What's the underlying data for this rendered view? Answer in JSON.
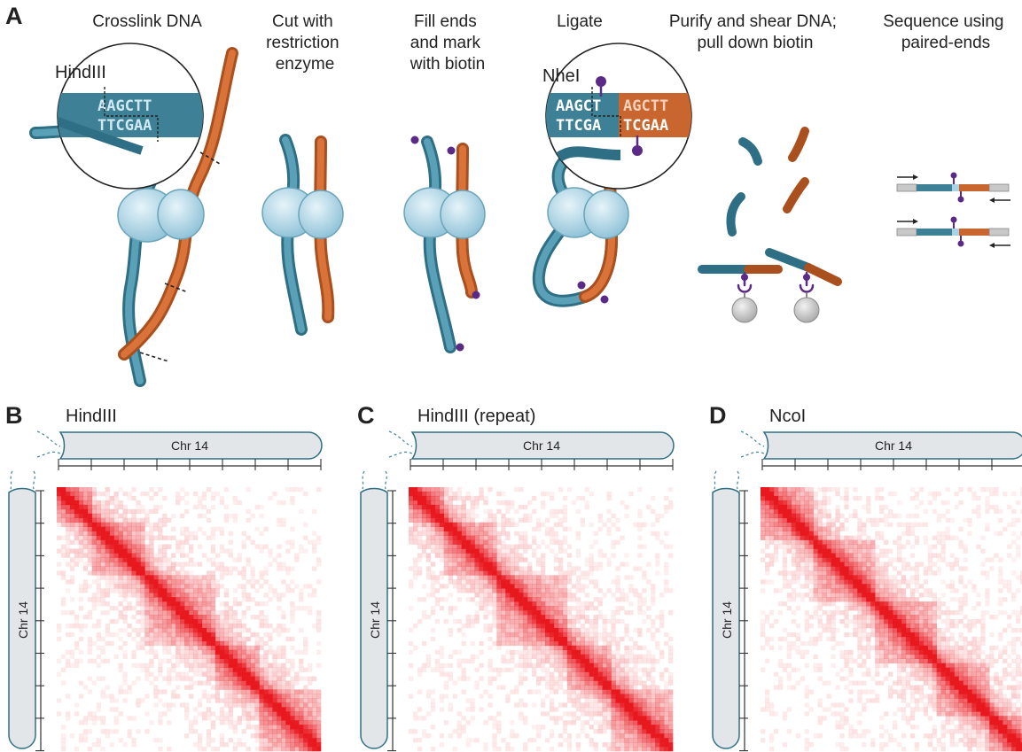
{
  "panelA": {
    "letter": "A",
    "steps": [
      {
        "lines": [
          "Crosslink DNA"
        ]
      },
      {
        "lines": [
          "Cut with",
          "restriction",
          "enzyme"
        ]
      },
      {
        "lines": [
          "Fill ends",
          "and mark",
          "with biotin"
        ]
      },
      {
        "lines": [
          "Ligate"
        ]
      },
      {
        "lines": [
          "Purify and shear DNA;",
          "pull down biotin"
        ]
      },
      {
        "lines": [
          "Sequence using",
          "paired-ends"
        ]
      }
    ],
    "hind_label": "HindIII",
    "hind_seq_top": "AAGCTT",
    "hind_seq_bottom": "TTCGAA",
    "nhe_label": "NheI",
    "nhe_left_top": "AAGCT",
    "nhe_left_bottom": "TTCGA",
    "nhe_right_top": "AGCTT",
    "nhe_right_bottom": "TCGAA"
  },
  "heatmaps": [
    {
      "letter": "B",
      "title": "HindIII",
      "chr_label": "Chr 14"
    },
    {
      "letter": "C",
      "title": "HindIII (repeat)",
      "chr_label": "Chr 14"
    },
    {
      "letter": "D",
      "title": "NcoI",
      "chr_label": "Chr 14"
    }
  ],
  "colors": {
    "teal": "#4a8aa0",
    "teal_dark": "#2f6f86",
    "orange": "#d0682c",
    "purple": "#5b2a86",
    "histone": "#a9d3e4",
    "heat": "#e8181f",
    "chrom_fill": "#e3e6e8"
  }
}
